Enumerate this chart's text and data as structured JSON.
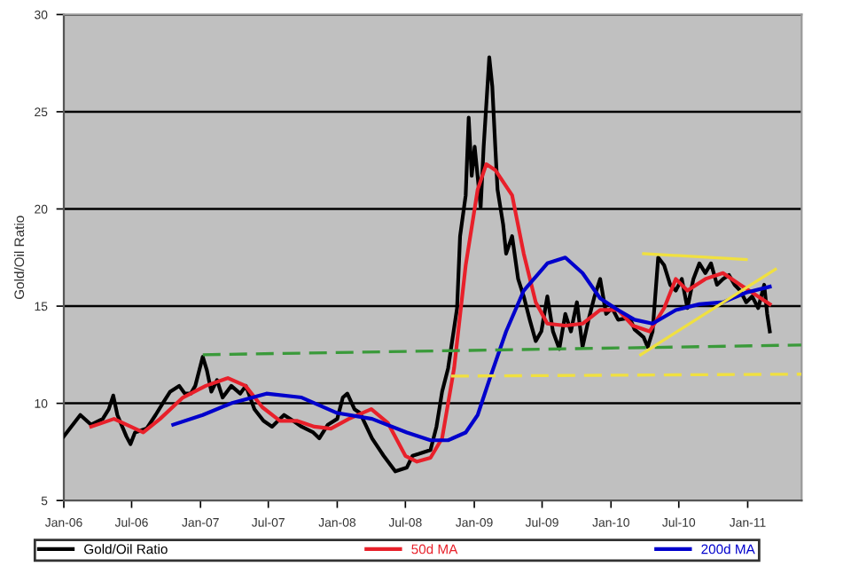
{
  "chart_data": {
    "type": "line",
    "ylabel": "Gold/Oil Ratio",
    "ylim": [
      5,
      30
    ],
    "yticks": [
      5,
      10,
      15,
      20,
      25,
      30
    ],
    "xlim": [
      "2006-01-01",
      "2011-05-25"
    ],
    "xticks": [
      {
        "value": "2006-01-01",
        "label": "Jan-06"
      },
      {
        "value": "2006-07-01",
        "label": "Jul-06"
      },
      {
        "value": "2007-01-01",
        "label": "Jan-07"
      },
      {
        "value": "2007-07-01",
        "label": "Jul-07"
      },
      {
        "value": "2008-01-01",
        "label": "Jan-08"
      },
      {
        "value": "2008-07-01",
        "label": "Jul-08"
      },
      {
        "value": "2009-01-01",
        "label": "Jan-09"
      },
      {
        "value": "2009-07-01",
        "label": "Jul-09"
      },
      {
        "value": "2010-01-01",
        "label": "Jan-10"
      },
      {
        "value": "2010-07-01",
        "label": "Jul-10"
      },
      {
        "value": "2011-01-01",
        "label": "Jan-11"
      }
    ],
    "grid": "y",
    "legend": "bottom",
    "marker": "none",
    "series": [
      {
        "name": "Gold/Oil Ratio",
        "color": "#000000",
        "line_style": "solid",
        "x": [
          "2006-01-01",
          "2006-01-13",
          "2006-02-14",
          "2006-03-15",
          "2006-04-15",
          "2006-05-01",
          "2006-05-13",
          "2006-05-24",
          "2006-06-17",
          "2006-06-28",
          "2006-07-10",
          "2006-08-10",
          "2006-09-03",
          "2006-09-22",
          "2006-10-12",
          "2006-11-05",
          "2006-11-20",
          "2006-12-06",
          "2006-12-18",
          "2007-01-07",
          "2007-01-18",
          "2007-01-30",
          "2007-02-14",
          "2007-03-01",
          "2007-03-24",
          "2007-04-17",
          "2007-05-02",
          "2007-05-25",
          "2007-06-18",
          "2007-07-11",
          "2007-07-27",
          "2007-08-12",
          "2007-09-05",
          "2007-09-28",
          "2007-10-29",
          "2007-11-14",
          "2007-12-07",
          "2008-01-01",
          "2008-01-16",
          "2008-01-28",
          "2008-02-16",
          "2008-03-02",
          "2008-04-03",
          "2008-05-04",
          "2008-06-04",
          "2008-07-05",
          "2008-07-20",
          "2008-08-06",
          "2008-09-06",
          "2008-09-22",
          "2008-10-07",
          "2008-10-23",
          "2008-11-16",
          "2008-11-24",
          "2008-12-09",
          "2008-12-17",
          "2008-12-25",
          "2009-01-02",
          "2009-01-18",
          "2009-01-26",
          "2009-02-10",
          "2009-02-18",
          "2009-02-26",
          "2009-03-04",
          "2009-03-19",
          "2009-03-27",
          "2009-04-12",
          "2009-04-28",
          "2009-05-13",
          "2009-05-29",
          "2009-06-14",
          "2009-06-29",
          "2009-07-15",
          "2009-07-30",
          "2009-08-16",
          "2009-09-01",
          "2009-09-16",
          "2009-10-02",
          "2009-10-17",
          "2009-11-02",
          "2009-11-18",
          "2009-12-03",
          "2009-12-19",
          "2010-01-04",
          "2010-01-20",
          "2010-02-20",
          "2010-03-05",
          "2010-03-29",
          "2010-04-09",
          "2010-04-22",
          "2010-05-07",
          "2010-05-23",
          "2010-06-08",
          "2010-06-23",
          "2010-07-09",
          "2010-07-24",
          "2010-08-09",
          "2010-08-25",
          "2010-09-10",
          "2010-09-25",
          "2010-10-11",
          "2010-10-27",
          "2010-11-12",
          "2010-11-27",
          "2010-12-12",
          "2010-12-28",
          "2011-01-13",
          "2011-01-29",
          "2011-02-14",
          "2011-02-22",
          "2011-03-01"
        ],
        "values": [
          8.3,
          8.6,
          9.4,
          8.9,
          9.2,
          9.7,
          10.4,
          9.4,
          8.3,
          7.9,
          8.5,
          8.7,
          9.4,
          10.0,
          10.6,
          10.9,
          10.5,
          10.5,
          10.9,
          12.4,
          11.7,
          10.6,
          11.2,
          10.3,
          10.9,
          10.5,
          10.9,
          9.7,
          9.1,
          8.8,
          9.1,
          9.4,
          9.1,
          8.8,
          8.5,
          8.2,
          8.9,
          9.2,
          10.3,
          10.5,
          9.7,
          9.5,
          8.2,
          7.3,
          6.5,
          6.7,
          7.3,
          7.4,
          7.6,
          8.8,
          10.6,
          11.8,
          14.9,
          18.6,
          20.7,
          24.7,
          21.7,
          23.2,
          20.1,
          23.2,
          27.8,
          26.3,
          23.2,
          21.0,
          19.2,
          17.7,
          18.6,
          16.4,
          15.5,
          14.3,
          13.2,
          13.7,
          15.5,
          13.7,
          12.8,
          14.6,
          13.7,
          15.2,
          12.9,
          14.3,
          15.5,
          16.4,
          14.6,
          14.9,
          14.3,
          14.4,
          13.8,
          13.4,
          12.9,
          13.7,
          17.5,
          17.1,
          16.1,
          15.8,
          16.4,
          14.9,
          16.4,
          17.2,
          16.7,
          17.2,
          16.1,
          16.4,
          16.6,
          16.1,
          15.8,
          15.2,
          15.5,
          14.9,
          16.1,
          14.6,
          13.7
        ]
      },
      {
        "name": "50d MA",
        "color": "#e8202a",
        "line_style": "solid",
        "x": [
          "2006-03-15",
          "2006-05-15",
          "2006-08-01",
          "2006-09-15",
          "2006-11-15",
          "2007-01-15",
          "2007-03-15",
          "2007-05-01",
          "2007-06-15",
          "2007-08-01",
          "2007-09-15",
          "2007-11-01",
          "2007-12-15",
          "2008-02-01",
          "2008-04-01",
          "2008-05-15",
          "2008-07-01",
          "2008-08-01",
          "2008-09-06",
          "2008-10-07",
          "2008-11-08",
          "2008-12-09",
          "2009-01-10",
          "2009-02-02",
          "2009-02-26",
          "2009-04-12",
          "2009-05-13",
          "2009-06-14",
          "2009-07-15",
          "2009-09-01",
          "2009-10-17",
          "2009-12-03",
          "2010-01-20",
          "2010-02-28",
          "2010-04-14",
          "2010-05-23",
          "2010-06-23",
          "2010-07-24",
          "2010-09-10",
          "2010-10-27",
          "2010-12-12",
          "2011-01-13",
          "2011-03-01"
        ],
        "values": [
          8.8,
          9.2,
          8.5,
          9.2,
          10.3,
          10.9,
          11.3,
          10.9,
          9.8,
          9.1,
          9.1,
          8.8,
          8.7,
          9.2,
          9.7,
          9.0,
          7.3,
          7.0,
          7.2,
          8.2,
          11.8,
          17.1,
          21.0,
          22.3,
          22.0,
          20.7,
          17.7,
          15.2,
          14.1,
          14.0,
          14.1,
          14.8,
          14.8,
          14.0,
          13.7,
          14.9,
          16.4,
          15.8,
          16.4,
          16.7,
          16.1,
          15.7,
          15.1
        ]
      },
      {
        "name": "200d MA",
        "color": "#0000cc",
        "line_style": "solid",
        "x": [
          "2006-10-20",
          "2007-01-07",
          "2007-03-24",
          "2007-06-26",
          "2007-09-28",
          "2008-01-01",
          "2008-04-03",
          "2008-07-05",
          "2008-09-06",
          "2008-10-23",
          "2008-12-09",
          "2009-01-10",
          "2009-02-10",
          "2009-03-27",
          "2009-05-13",
          "2009-07-15",
          "2009-09-01",
          "2009-10-17",
          "2009-12-03",
          "2010-01-20",
          "2010-03-05",
          "2010-04-22",
          "2010-06-23",
          "2010-08-25",
          "2010-10-27",
          "2010-12-28",
          "2011-03-01"
        ],
        "values": [
          8.9,
          9.4,
          10.0,
          10.5,
          10.3,
          9.5,
          9.2,
          8.5,
          8.1,
          8.1,
          8.5,
          9.4,
          11.2,
          13.7,
          15.8,
          17.2,
          17.5,
          16.7,
          15.4,
          14.8,
          14.3,
          14.1,
          14.8,
          15.1,
          15.2,
          15.7,
          16.0
        ]
      },
      {
        "color": "#3a9a3a",
        "line_style": "dashed",
        "x": [
          "2007-01-07",
          "2011-05-24"
        ],
        "values": [
          12.5,
          13.0
        ]
      },
      {
        "color": "#f0e040",
        "line_style": "dashed",
        "x": [
          "2008-10-31",
          "2011-05-24"
        ],
        "values": [
          11.4,
          11.5
        ]
      },
      {
        "color": "#f0e040",
        "line_style": "solid",
        "x": [
          "2010-03-29",
          "2010-12-28"
        ],
        "values": [
          17.7,
          17.4
        ]
      },
      {
        "color": "#f0e040",
        "line_style": "solid",
        "x": [
          "2010-03-21",
          "2011-03-16"
        ],
        "values": [
          12.5,
          16.9
        ]
      }
    ]
  }
}
